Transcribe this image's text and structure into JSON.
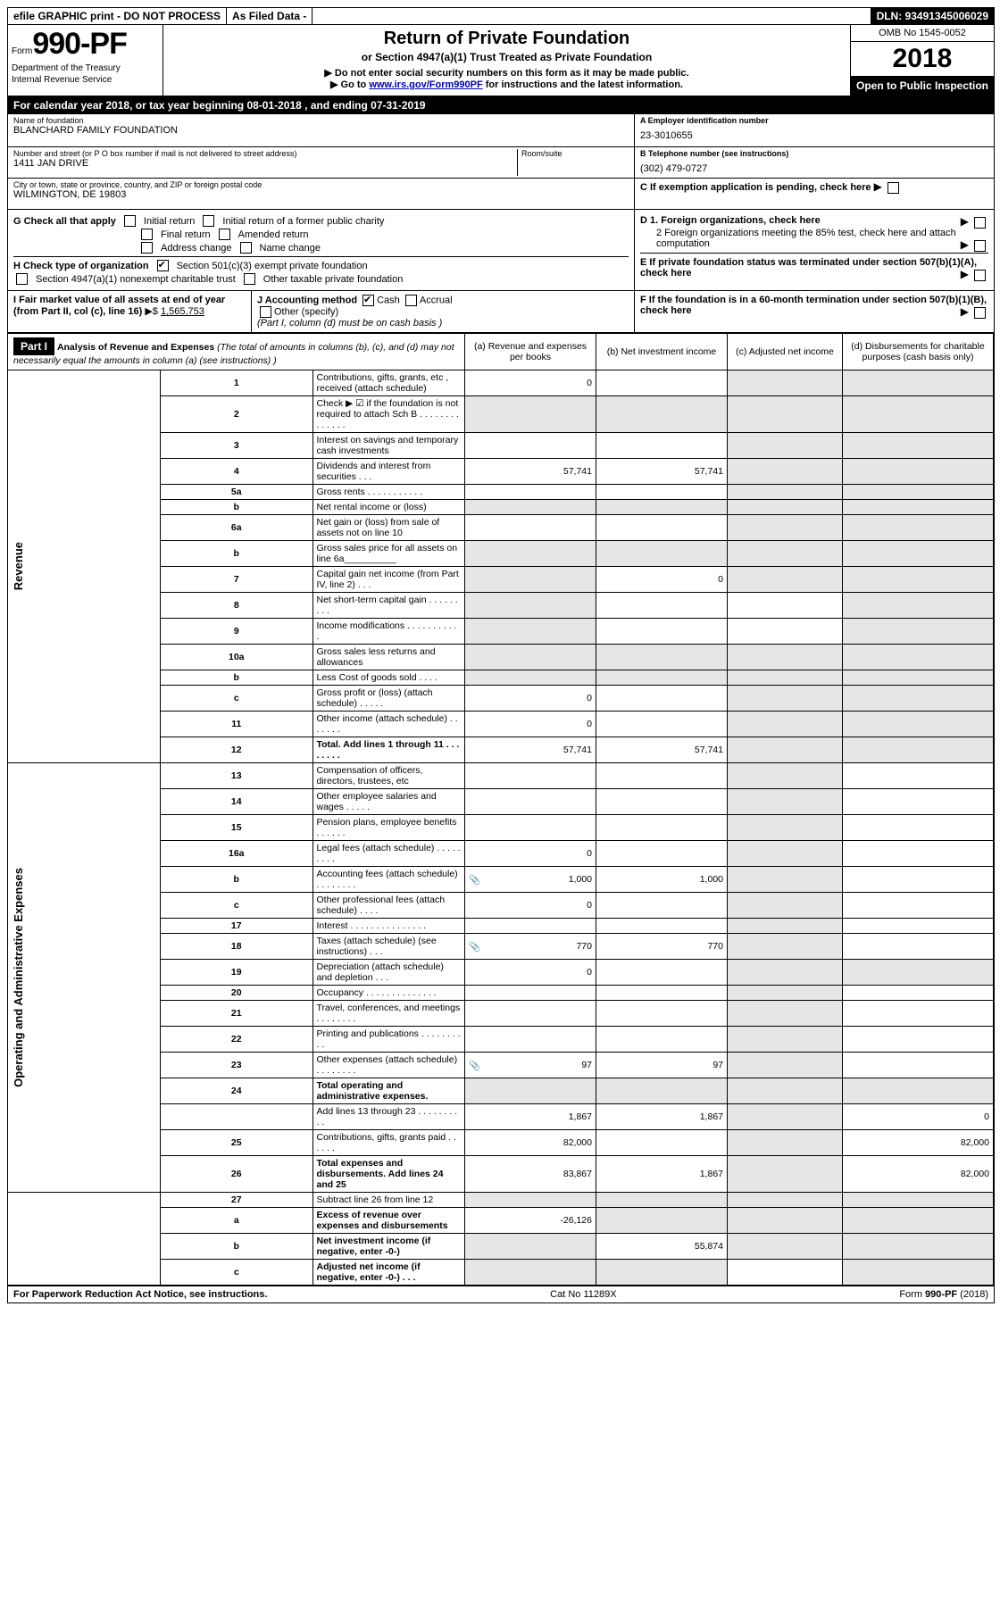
{
  "topbar": {
    "efile": "efile GRAPHIC print - DO NOT PROCESS",
    "asfiled": "As Filed Data -",
    "dln": "DLN: 93491345006029"
  },
  "head": {
    "form_word": "Form",
    "form_num": "990-PF",
    "dept1": "Department of the Treasury",
    "dept2": "Internal Revenue Service",
    "title": "Return of Private Foundation",
    "subtitle": "or Section 4947(a)(1) Trust Treated as Private Foundation",
    "note1": "▶ Do not enter social security numbers on this form as it may be made public.",
    "note2_pre": "▶ Go to ",
    "note2_link": "www.irs.gov/Form990PF",
    "note2_post": " for instructions and the latest information.",
    "omb": "OMB No 1545-0052",
    "year": "2018",
    "open": "Open to Public Inspection"
  },
  "cal_year": "For calendar year 2018, or tax year beginning 08-01-2018            , and ending 07-31-2019",
  "name": {
    "label": "Name of foundation",
    "value": "BLANCHARD FAMILY FOUNDATION"
  },
  "ein": {
    "label": "A Employer identification number",
    "value": "23-3010655"
  },
  "addr": {
    "label": "Number and street (or P O  box number if mail is not delivered to street address)",
    "value": "1411 JAN DRIVE",
    "room_label": "Room/suite",
    "room_value": ""
  },
  "phone": {
    "label": "B Telephone number (see instructions)",
    "value": "(302) 479-0727"
  },
  "city": {
    "label": "City or town, state or province, country, and ZIP or foreign postal code",
    "value": "WILMINGTON, DE  19803"
  },
  "c_exempt": "C If exemption application is pending, check here",
  "g": {
    "label": "G Check all that apply",
    "opts": [
      "Initial return",
      "Initial return of a former public charity",
      "Final return",
      "Amended return",
      "Address change",
      "Name change"
    ]
  },
  "d": {
    "d1": "D 1. Foreign organizations, check here",
    "d2": "2 Foreign organizations meeting the 85% test, check here and attach computation"
  },
  "h": {
    "label": "H Check type of organization",
    "opt1": "Section 501(c)(3) exempt private foundation",
    "opt2": "Section 4947(a)(1) nonexempt charitable trust",
    "opt3": "Other taxable private foundation"
  },
  "e": "E  If private foundation status was terminated under section 507(b)(1)(A), check here",
  "i": {
    "label": "I Fair market value of all assets at end of year (from Part II, col  (c), line 16)",
    "arrow": "▶$",
    "value": "1,565,753"
  },
  "j": {
    "label": "J Accounting method",
    "cash": "Cash",
    "accrual": "Accrual",
    "other": "Other (specify)",
    "note": "(Part I, column (d) must be on cash basis )"
  },
  "f": "F  If the foundation is in a 60-month termination under section 507(b)(1)(B), check here",
  "part1": {
    "hdr": "Part I",
    "title": "Analysis of Revenue and Expenses",
    "title_note": "(The total of amounts in columns (b), (c), and (d) may not necessarily equal the amounts in column (a) (see instructions) )",
    "col_a": "(a) Revenue and expenses per books",
    "col_b": "(b) Net investment income",
    "col_c": "(c) Adjusted net income",
    "col_d": "(d) Disbursements for charitable purposes (cash basis only)",
    "rev_label": "Revenue",
    "exp_label": "Operating and Administrative Expenses"
  },
  "rows": [
    {
      "n": "1",
      "d": "Contributions, gifts, grants, etc , received (attach schedule)",
      "a": "0"
    },
    {
      "n": "2",
      "d": "Check ▶ ☑ if the foundation is not required to attach Sch  B",
      "dots": ". . . . . . . . . . . . . ."
    },
    {
      "n": "3",
      "d": "Interest on savings and temporary cash investments"
    },
    {
      "n": "4",
      "d": "Dividends and interest from securities",
      "dots": " .  .  .",
      "a": "57,741",
      "b": "57,741"
    },
    {
      "n": "5a",
      "d": "Gross rents",
      "dots": " . . . . . . . . . . ."
    },
    {
      "n": "b",
      "d": "Net rental income or (loss)"
    },
    {
      "n": "6a",
      "d": "Net gain or (loss) from sale of assets not on line 10"
    },
    {
      "n": "b",
      "d": "Gross sales price for all assets on line 6a__________"
    },
    {
      "n": "7",
      "d": "Capital gain net income (from Part IV, line 2)",
      "dots": " .  .  .",
      "b": "0"
    },
    {
      "n": "8",
      "d": "Net short-term capital gain",
      "dots": " . . . . . . . . ."
    },
    {
      "n": "9",
      "d": "Income modifications",
      "dots": " . . . . . . . . . . ."
    },
    {
      "n": "10a",
      "d": "Gross sales less returns and allowances"
    },
    {
      "n": "b",
      "d": "Less  Cost of goods sold",
      "dots": " .  .  .  ."
    },
    {
      "n": "c",
      "d": "Gross profit or (loss) (attach schedule)",
      "dots": " .  .  .  .  .",
      "a": "0"
    },
    {
      "n": "11",
      "d": "Other income (attach schedule)",
      "dots": " .  .  .  .  .  .  .",
      "a": "0"
    },
    {
      "n": "12",
      "d": "Total. Add lines 1 through 11",
      "dots": " .  .  .  .  .  .  .  .",
      "a": "57,741",
      "b": "57,741",
      "bold": true
    }
  ],
  "exp_rows": [
    {
      "n": "13",
      "d": "Compensation of officers, directors, trustees, etc"
    },
    {
      "n": "14",
      "d": "Other employee salaries and wages",
      "dots": " .  .  .  .  ."
    },
    {
      "n": "15",
      "d": "Pension plans, employee benefits",
      "dots": " .  .  .  .  .  ."
    },
    {
      "n": "16a",
      "d": "Legal fees (attach schedule)",
      "dots": " . . . . . . . . .",
      "a": "0"
    },
    {
      "n": "b",
      "d": "Accounting fees (attach schedule)",
      "dots": " . . . . . . . .",
      "icon": true,
      "a": "1,000",
      "b": "1,000"
    },
    {
      "n": "c",
      "d": "Other professional fees (attach schedule)",
      "dots": " .  .  .  .",
      "a": "0"
    },
    {
      "n": "17",
      "d": "Interest",
      "dots": " . . . . . . . . . . . . . . ."
    },
    {
      "n": "18",
      "d": "Taxes (attach schedule) (see instructions)",
      "dots": "   .  .  .",
      "icon": true,
      "a": "770",
      "b": "770"
    },
    {
      "n": "19",
      "d": "Depreciation (attach schedule) and depletion",
      "dots": " .  .  .",
      "a": "0"
    },
    {
      "n": "20",
      "d": "Occupancy",
      "dots": " . . . . . . . . . . . . . ."
    },
    {
      "n": "21",
      "d": "Travel, conferences, and meetings",
      "dots": " . . . . . . . ."
    },
    {
      "n": "22",
      "d": "Printing and publications",
      "dots": " . . . . . . . . . ."
    },
    {
      "n": "23",
      "d": "Other expenses (attach schedule)",
      "dots": " . . . . . . . .",
      "icon": true,
      "a": "97",
      "b": "97"
    },
    {
      "n": "24",
      "d": "Total operating and administrative expenses.",
      "bold": true
    },
    {
      "n": "",
      "d": "Add lines 13 through 23",
      "dots": " .  .  .  .  .  .  .  .  .  .",
      "a": "1,867",
      "b": "1,867",
      "d4": "0"
    },
    {
      "n": "25",
      "d": "Contributions, gifts, grants paid",
      "dots": "    .  .  .  .  .  .",
      "a": "82,000",
      "d4": "82,000"
    },
    {
      "n": "26",
      "d": "Total expenses and disbursements. Add lines 24 and 25",
      "a": "83,867",
      "b": "1,867",
      "d4": "82,000",
      "bold": true
    }
  ],
  "bottom_rows": [
    {
      "n": "27",
      "d": "Subtract line 26 from line 12"
    },
    {
      "n": "a",
      "d": "Excess of revenue over expenses and disbursements",
      "a": "-26,126",
      "bold": true
    },
    {
      "n": "b",
      "d": "Net investment income (if negative, enter -0-)",
      "b": "55,874",
      "bold": true
    },
    {
      "n": "c",
      "d": "Adjusted net income (if negative, enter -0-)",
      "dots": " .  .  .",
      "bold": true
    }
  ],
  "footer": {
    "left": "For Paperwork Reduction Act Notice, see instructions.",
    "mid": "Cat  No  11289X",
    "right": "Form 990-PF (2018)"
  }
}
